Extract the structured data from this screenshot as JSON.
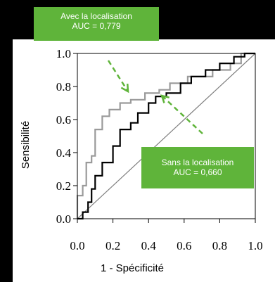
{
  "chart_data": {
    "type": "line",
    "xlabel": "1 - Spécificité",
    "ylabel": "Sensibilité",
    "xlim": [
      0,
      1
    ],
    "ylim": [
      0,
      1
    ],
    "x_ticks": [
      "0.0",
      "0.2",
      "0.4",
      "0.6",
      "0.8",
      "1.0"
    ],
    "y_ticks": [
      "0.0",
      "0.2",
      "0.4",
      "0.6",
      "0.8",
      "1.0"
    ],
    "grid": false,
    "series": [
      {
        "color": "#9a9a9a",
        "points": [
          [
            0,
            0
          ],
          [
            0,
            0.14
          ],
          [
            0.03,
            0.14
          ],
          [
            0.03,
            0.2
          ],
          [
            0.05,
            0.2
          ],
          [
            0.05,
            0.34
          ],
          [
            0.08,
            0.34
          ],
          [
            0.08,
            0.38
          ],
          [
            0.1,
            0.38
          ],
          [
            0.1,
            0.54
          ],
          [
            0.14,
            0.54
          ],
          [
            0.14,
            0.62
          ],
          [
            0.18,
            0.62
          ],
          [
            0.18,
            0.66
          ],
          [
            0.24,
            0.66
          ],
          [
            0.24,
            0.7
          ],
          [
            0.3,
            0.7
          ],
          [
            0.3,
            0.72
          ],
          [
            0.38,
            0.72
          ],
          [
            0.38,
            0.76
          ],
          [
            0.46,
            0.76
          ],
          [
            0.46,
            0.78
          ],
          [
            0.52,
            0.78
          ],
          [
            0.52,
            0.82
          ],
          [
            0.62,
            0.82
          ],
          [
            0.62,
            0.86
          ],
          [
            0.76,
            0.86
          ],
          [
            0.76,
            0.9
          ],
          [
            0.86,
            0.9
          ],
          [
            0.86,
            0.94
          ],
          [
            0.92,
            0.94
          ],
          [
            0.92,
            1
          ],
          [
            1,
            1
          ]
        ]
      },
      {
        "color": "#000000",
        "points": [
          [
            0,
            0
          ],
          [
            0.03,
            0
          ],
          [
            0.03,
            0.04
          ],
          [
            0.06,
            0.04
          ],
          [
            0.06,
            0.1
          ],
          [
            0.08,
            0.1
          ],
          [
            0.08,
            0.18
          ],
          [
            0.1,
            0.18
          ],
          [
            0.1,
            0.26
          ],
          [
            0.14,
            0.26
          ],
          [
            0.14,
            0.34
          ],
          [
            0.2,
            0.34
          ],
          [
            0.2,
            0.44
          ],
          [
            0.24,
            0.44
          ],
          [
            0.24,
            0.54
          ],
          [
            0.3,
            0.54
          ],
          [
            0.3,
            0.58
          ],
          [
            0.34,
            0.58
          ],
          [
            0.34,
            0.64
          ],
          [
            0.4,
            0.64
          ],
          [
            0.4,
            0.7
          ],
          [
            0.44,
            0.7
          ],
          [
            0.44,
            0.74
          ],
          [
            0.5,
            0.74
          ],
          [
            0.5,
            0.76
          ],
          [
            0.58,
            0.76
          ],
          [
            0.58,
            0.82
          ],
          [
            0.64,
            0.82
          ],
          [
            0.64,
            0.86
          ],
          [
            0.72,
            0.86
          ],
          [
            0.72,
            0.9
          ],
          [
            0.8,
            0.9
          ],
          [
            0.8,
            0.94
          ],
          [
            0.88,
            0.94
          ],
          [
            0.88,
            0.98
          ],
          [
            0.94,
            0.98
          ],
          [
            0.94,
            1
          ],
          [
            1,
            1
          ]
        ]
      },
      {
        "color": "#7f7f7f",
        "points": [
          [
            0,
            0
          ],
          [
            1,
            1
          ]
        ]
      }
    ],
    "annotations": [
      {
        "lines": [
          "Avec la localisation",
          "AUC = 0,779"
        ]
      },
      {
        "lines": [
          "Sans la localisation",
          "AUC = 0,660"
        ]
      }
    ],
    "colors": {
      "annotation_bg": "#5fb43a",
      "annotation_arrow": "#5fb43a"
    }
  }
}
